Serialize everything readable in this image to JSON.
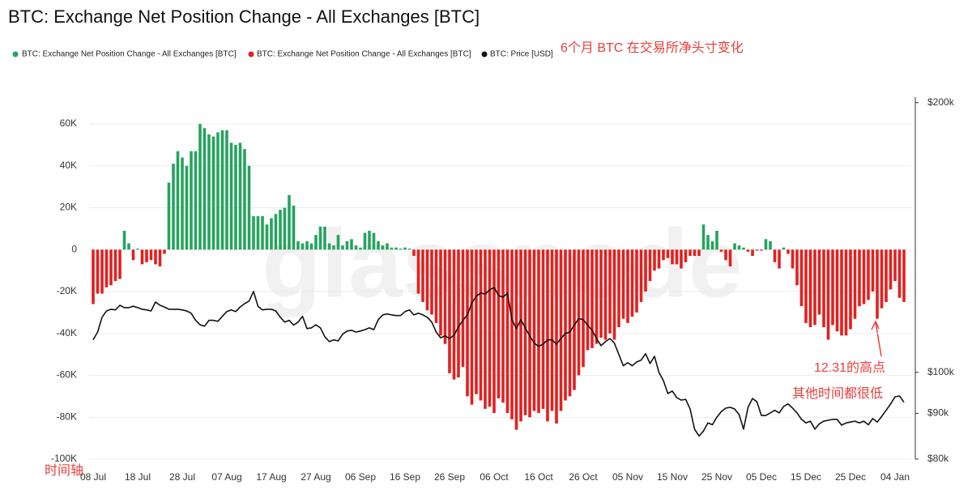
{
  "chart_data": {
    "type": "bar",
    "title": "BTC: Exchange Net Position Change - All Exchanges [BTC]",
    "watermark": "glassnode",
    "annotations": [
      "6个月 BTC 在交易所净头寸变化",
      "12.31的高点",
      "其他时间都很低",
      "时间轴"
    ],
    "categories": [
      "08 Jul",
      null,
      null,
      null,
      null,
      null,
      null,
      null,
      null,
      null,
      "18 Jul",
      null,
      null,
      null,
      null,
      null,
      null,
      null,
      null,
      null,
      "28 Jul",
      null,
      null,
      null,
      null,
      null,
      null,
      null,
      null,
      null,
      "07 Aug",
      null,
      null,
      null,
      null,
      null,
      null,
      null,
      null,
      null,
      "17 Aug",
      null,
      null,
      null,
      null,
      null,
      null,
      null,
      null,
      null,
      "27 Aug",
      null,
      null,
      null,
      null,
      null,
      null,
      null,
      null,
      null,
      "06 Sep",
      null,
      null,
      null,
      null,
      null,
      null,
      null,
      null,
      null,
      "16 Sep",
      null,
      null,
      null,
      null,
      null,
      null,
      null,
      null,
      null,
      "26 Sep",
      null,
      null,
      null,
      null,
      null,
      null,
      null,
      null,
      null,
      "06 Oct",
      null,
      null,
      null,
      null,
      null,
      null,
      null,
      null,
      null,
      "16 Oct",
      null,
      null,
      null,
      null,
      null,
      null,
      null,
      null,
      null,
      "26 Oct",
      null,
      null,
      null,
      null,
      null,
      null,
      null,
      null,
      null,
      "05 Nov",
      null,
      null,
      null,
      null,
      null,
      null,
      null,
      null,
      null,
      "15 Nov",
      null,
      null,
      null,
      null,
      null,
      null,
      null,
      null,
      null,
      "25 Nov",
      null,
      null,
      null,
      null,
      null,
      null,
      null,
      null,
      null,
      "05 Dec",
      null,
      null,
      null,
      null,
      null,
      null,
      null,
      null,
      null,
      "15 Dec",
      null,
      null,
      null,
      null,
      null,
      null,
      null,
      null,
      null,
      "25 Dec",
      null,
      null,
      null,
      null,
      null,
      null,
      null,
      null,
      null,
      "04 Jan",
      null,
      null
    ],
    "series": [
      {
        "name": "BTC: Exchange Net Position Change - All Exchanges [BTC]",
        "color": "#27a35f",
        "values": [
          null,
          null,
          null,
          null,
          null,
          null,
          null,
          9000,
          3000,
          null,
          500,
          null,
          null,
          null,
          null,
          null,
          null,
          32000,
          41000,
          47000,
          44000,
          40000,
          47000,
          47000,
          60000,
          58000,
          55000,
          54000,
          56000,
          57000,
          57000,
          51000,
          50000,
          51000,
          48000,
          40000,
          16000,
          16000,
          16000,
          12000,
          15000,
          17000,
          19000,
          20000,
          26000,
          21000,
          4000,
          3000,
          4000,
          3000,
          7000,
          11000,
          11000,
          3000,
          2000,
          7000,
          2000,
          4000,
          5000,
          2000,
          1000,
          8000,
          9000,
          8000,
          4000,
          2000,
          3000,
          1000,
          1000,
          500,
          1000,
          500,
          null,
          null,
          null,
          null,
          null,
          null,
          null,
          null,
          null,
          null,
          null,
          null,
          null,
          null,
          null,
          null,
          null,
          null,
          null,
          null,
          null,
          null,
          null,
          null,
          null,
          null,
          null,
          null,
          null,
          null,
          null,
          null,
          null,
          null,
          null,
          null,
          null,
          null,
          null,
          null,
          null,
          null,
          null,
          null,
          null,
          null,
          null,
          null,
          null,
          null,
          null,
          null,
          null,
          null,
          null,
          null,
          null,
          null,
          null,
          null,
          null,
          null,
          null,
          null,
          null,
          12000,
          7000,
          4000,
          9000,
          null,
          null,
          null,
          3000,
          2000,
          1000,
          null,
          null,
          null,
          null,
          5000,
          4000,
          null,
          null,
          1000,
          null,
          null,
          null,
          null,
          null,
          null,
          null,
          null,
          null,
          null,
          null,
          null,
          null,
          null,
          null,
          null,
          null,
          null,
          null,
          null,
          null,
          null,
          null,
          null,
          null,
          null,
          null
        ]
      },
      {
        "name": "BTC: Exchange Net Position Change - All Exchanges [BTC]",
        "color": "#e3201f",
        "values": [
          -26000,
          -21000,
          -21000,
          -18000,
          -17000,
          -15000,
          -14000,
          null,
          null,
          -5000,
          null,
          -7000,
          -6000,
          -5000,
          -7000,
          -8000,
          -2000,
          null,
          null,
          null,
          null,
          null,
          null,
          null,
          null,
          null,
          null,
          null,
          null,
          null,
          null,
          null,
          null,
          null,
          null,
          null,
          null,
          null,
          null,
          null,
          null,
          null,
          null,
          null,
          null,
          null,
          null,
          null,
          null,
          null,
          null,
          null,
          null,
          null,
          null,
          null,
          null,
          null,
          null,
          null,
          null,
          null,
          null,
          null,
          null,
          null,
          null,
          null,
          null,
          null,
          null,
          null,
          -3000,
          -21000,
          -25000,
          -29000,
          -31000,
          -35000,
          -41000,
          -45000,
          -59000,
          -62000,
          -61000,
          -56000,
          -70000,
          -74000,
          -69000,
          -72000,
          -76000,
          -75000,
          -78000,
          -71000,
          -73000,
          -78000,
          -81000,
          -86000,
          -82000,
          -79000,
          -80000,
          -77000,
          -78000,
          -76000,
          -82000,
          -77000,
          -83000,
          -77000,
          -72000,
          -70000,
          -67000,
          -60000,
          -56000,
          -48000,
          -47000,
          -45000,
          -42000,
          -43000,
          -40000,
          -43000,
          -37000,
          -33000,
          -35000,
          -32000,
          -30000,
          -25000,
          -20000,
          -15000,
          -10000,
          -9000,
          -5000,
          -4000,
          -7000,
          -7000,
          -9000,
          -6000,
          -3000,
          -3000,
          -3000,
          null,
          null,
          null,
          null,
          -1000,
          -5000,
          -8000,
          null,
          null,
          null,
          -1000,
          -3000,
          -500,
          -500,
          null,
          null,
          -6000,
          -9000,
          null,
          -2000,
          -9000,
          -17000,
          -27000,
          -35000,
          -37000,
          -36000,
          -31000,
          -37000,
          -43000,
          -36000,
          -39000,
          -41000,
          -41000,
          -38000,
          -33000,
          -27000,
          -26000,
          -24000,
          -20000,
          -33000,
          -28000,
          -25000,
          -19000,
          -15000,
          -23000,
          -25000
        ]
      },
      {
        "name": "BTC: Price [USD]",
        "color": "#111111",
        "type": "line",
        "axis": "y2",
        "values": [
          108700,
          110900,
          115200,
          117100,
          117600,
          117400,
          118800,
          118100,
          118100,
          118500,
          118100,
          117600,
          117400,
          117100,
          119800,
          118800,
          118300,
          117600,
          117600,
          117600,
          117400,
          117100,
          116400,
          114300,
          113000,
          112600,
          114300,
          114300,
          114000,
          115500,
          116900,
          117400,
          116900,
          118300,
          119300,
          120100,
          123100,
          118500,
          117400,
          117600,
          117600,
          117100,
          115200,
          113800,
          114300,
          112900,
          113800,
          115500,
          111900,
          112100,
          113000,
          112100,
          109600,
          108200,
          108700,
          108400,
          110300,
          111200,
          111400,
          110900,
          111200,
          111600,
          112100,
          111600,
          114500,
          115900,
          116200,
          115900,
          115700,
          115700,
          116900,
          117400,
          115900,
          116400,
          115900,
          115200,
          113800,
          110900,
          109300,
          109800,
          109100,
          110000,
          112400,
          114300,
          115900,
          119500,
          121600,
          122600,
          122300,
          123600,
          124400,
          121800,
          121300,
          122600,
          114500,
          111900,
          114500,
          112100,
          109800,
          107800,
          106900,
          107500,
          108700,
          108700,
          107500,
          109100,
          110500,
          110900,
          112900,
          114800,
          114500,
          112900,
          111400,
          109100,
          107100,
          108200,
          109100,
          107800,
          104700,
          101700,
          102500,
          101700,
          102700,
          103200,
          104900,
          102300,
          104200,
          100000,
          97900,
          94700,
          95300,
          93700,
          93100,
          93300,
          91000,
          86400,
          84900,
          86000,
          87800,
          87400,
          89100,
          90400,
          91200,
          91400,
          91000,
          89700,
          86400,
          91400,
          93500,
          92700,
          89500,
          89500,
          90100,
          90700,
          90100,
          91600,
          92200,
          91200,
          90100,
          88600,
          87800,
          88200,
          86400,
          87600,
          88200,
          88400,
          88600,
          88600,
          87300,
          87800,
          88000,
          88200,
          87800,
          88200,
          87400,
          88800,
          88000,
          89300,
          90700,
          92200,
          93900,
          94100,
          92600
        ]
      }
    ],
    "ylim": [
      -100000,
      72000
    ],
    "yticks": [
      {
        "value": -100000,
        "label": "-100K"
      },
      {
        "value": -80000,
        "label": "-80K"
      },
      {
        "value": -60000,
        "label": "-60K"
      },
      {
        "value": -40000,
        "label": "-40K"
      },
      {
        "value": -20000,
        "label": "-20K"
      },
      0,
      {
        "value": 20000,
        "label": "20K"
      },
      {
        "value": 40000,
        "label": "40K"
      },
      {
        "value": 60000,
        "label": "60K"
      }
    ],
    "y2lim": [
      80000,
      202000
    ],
    "y2log": true,
    "y2ticks": [
      {
        "value": 80000,
        "label": "$80k"
      },
      {
        "value": 90000,
        "label": "$90k"
      },
      {
        "value": 100000,
        "label": "$100k"
      },
      {
        "value": 200000,
        "label": "$200k"
      }
    ],
    "grid": true
  }
}
